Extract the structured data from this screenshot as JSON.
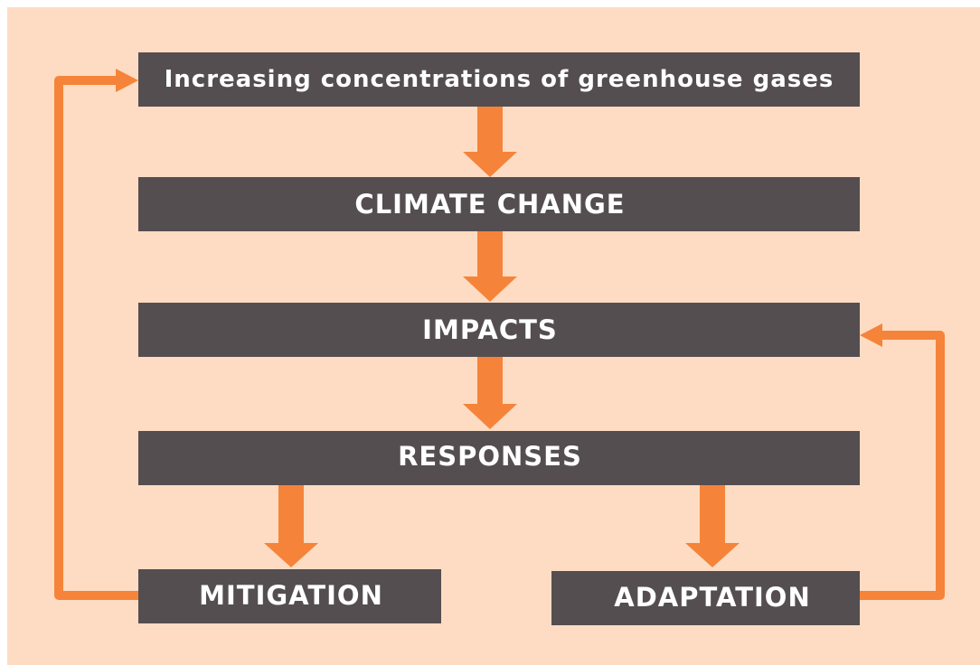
{
  "nodes": [
    {
      "label": "Increasing concentrations of greenhouse gases"
    },
    {
      "label": "CLIMATE CHANGE"
    },
    {
      "label": "IMPACTS"
    },
    {
      "label": "RESPONSES"
    },
    {
      "label": "MITIGATION"
    },
    {
      "label": "ADAPTATION"
    }
  ]
}
